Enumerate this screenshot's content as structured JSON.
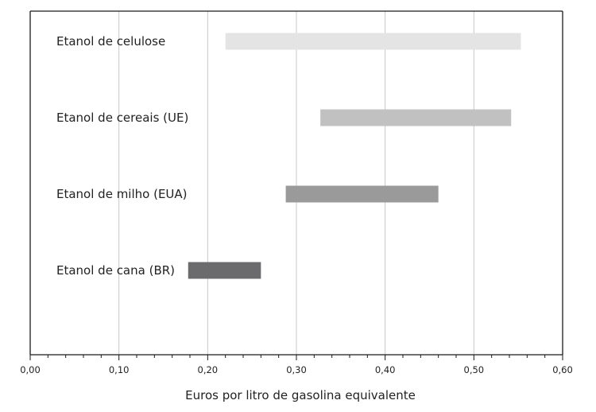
{
  "chart_data": {
    "type": "bar",
    "orientation": "horizontal",
    "subtype": "floating-range",
    "xlabel": "Euros por litro de gasolina equivalente",
    "xlim": [
      0,
      0.6
    ],
    "xtick_values": [
      0,
      0.1,
      0.2,
      0.3,
      0.4,
      0.5,
      0.6
    ],
    "xtick_labels": [
      "0,00",
      "0,10",
      "0,20",
      "0,30",
      "0,40",
      "0,50",
      "0,60"
    ],
    "minor_tick_step": 0.02,
    "grid": "vertical major lines",
    "bars": [
      {
        "label": "Etanol de celulose",
        "start": 0.22,
        "end": 0.553,
        "color": "#e4e4e4"
      },
      {
        "label": "Etanol de cereais (UE)",
        "start": 0.327,
        "end": 0.542,
        "color": "#c1c1c1"
      },
      {
        "label": "Etanol de milho (EUA)",
        "start": 0.288,
        "end": 0.46,
        "color": "#9a9a9a"
      },
      {
        "label": "Etanol de cana (BR)",
        "start": 0.178,
        "end": 0.26,
        "color": "#6b6b6d"
      }
    ]
  }
}
